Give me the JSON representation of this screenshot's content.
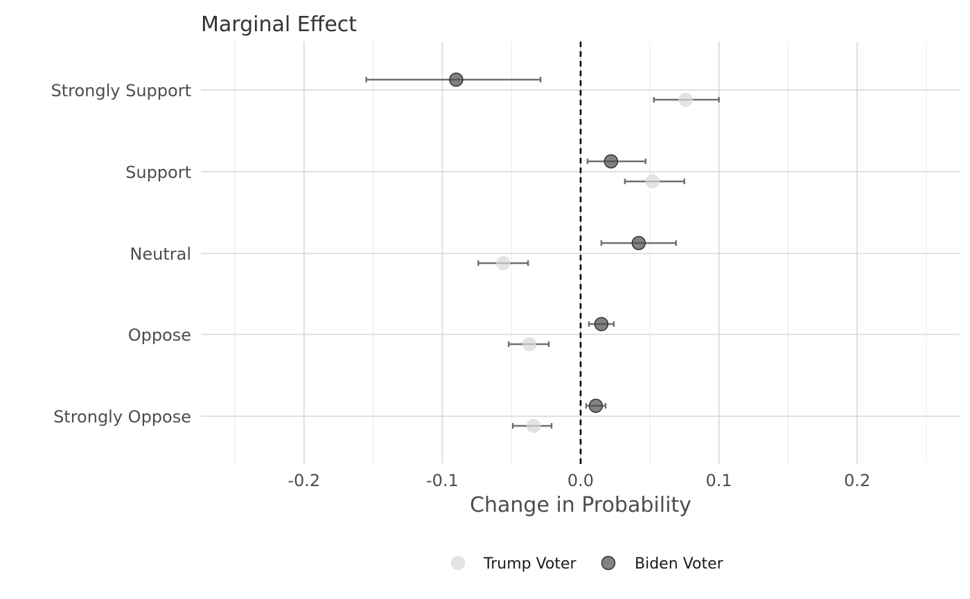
{
  "chart_data": {
    "type": "scatter",
    "title": "Marginal Effect",
    "xlabel": "Change in Probability",
    "ylabel": "",
    "xlim": [
      -0.275,
      0.275
    ],
    "x_ticks": [
      -0.2,
      -0.1,
      0.0,
      0.1,
      0.2
    ],
    "x_tick_labels": [
      "-0.2",
      "-0.1",
      "0.0",
      "0.1",
      "0.2"
    ],
    "categories": [
      "Strongly Support",
      "Support",
      "Neutral",
      "Oppose",
      "Strongly Oppose"
    ],
    "reference_line": 0.0,
    "grid": true,
    "legend_position": "bottom",
    "series": [
      {
        "name": "Trump Voter",
        "color": "#d9d9d9",
        "points": [
          {
            "category": "Strongly Support",
            "estimate": 0.076,
            "lower": 0.053,
            "upper": 0.1
          },
          {
            "category": "Support",
            "estimate": 0.052,
            "lower": 0.032,
            "upper": 0.075
          },
          {
            "category": "Neutral",
            "estimate": -0.056,
            "lower": -0.074,
            "upper": -0.038
          },
          {
            "category": "Oppose",
            "estimate": -0.037,
            "lower": -0.052,
            "upper": -0.023
          },
          {
            "category": "Strongly Oppose",
            "estimate": -0.034,
            "lower": -0.049,
            "upper": -0.021
          }
        ]
      },
      {
        "name": "Biden Voter",
        "color": "#4d4d4d",
        "points": [
          {
            "category": "Strongly Support",
            "estimate": -0.09,
            "lower": -0.155,
            "upper": -0.029
          },
          {
            "category": "Support",
            "estimate": 0.022,
            "lower": 0.005,
            "upper": 0.047
          },
          {
            "category": "Neutral",
            "estimate": 0.042,
            "lower": 0.015,
            "upper": 0.069
          },
          {
            "category": "Oppose",
            "estimate": 0.015,
            "lower": 0.006,
            "upper": 0.024
          },
          {
            "category": "Strongly Oppose",
            "estimate": 0.011,
            "lower": 0.004,
            "upper": 0.018
          }
        ]
      }
    ]
  }
}
